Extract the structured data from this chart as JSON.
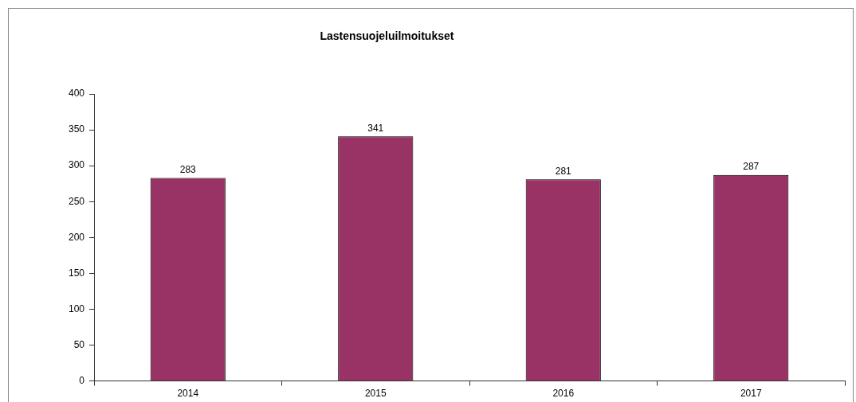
{
  "chart_data": {
    "type": "bar",
    "title": "Lastensuojeluilmoitukset",
    "categories": [
      "2014",
      "2015",
      "2016",
      "2017"
    ],
    "values": [
      283,
      341,
      281,
      287
    ],
    "color": "#993366",
    "ylim": [
      0,
      400
    ],
    "yticks": [
      0,
      50,
      100,
      150,
      200,
      250,
      300,
      350,
      400
    ],
    "grid": false,
    "legend": false,
    "data_labels": true
  }
}
